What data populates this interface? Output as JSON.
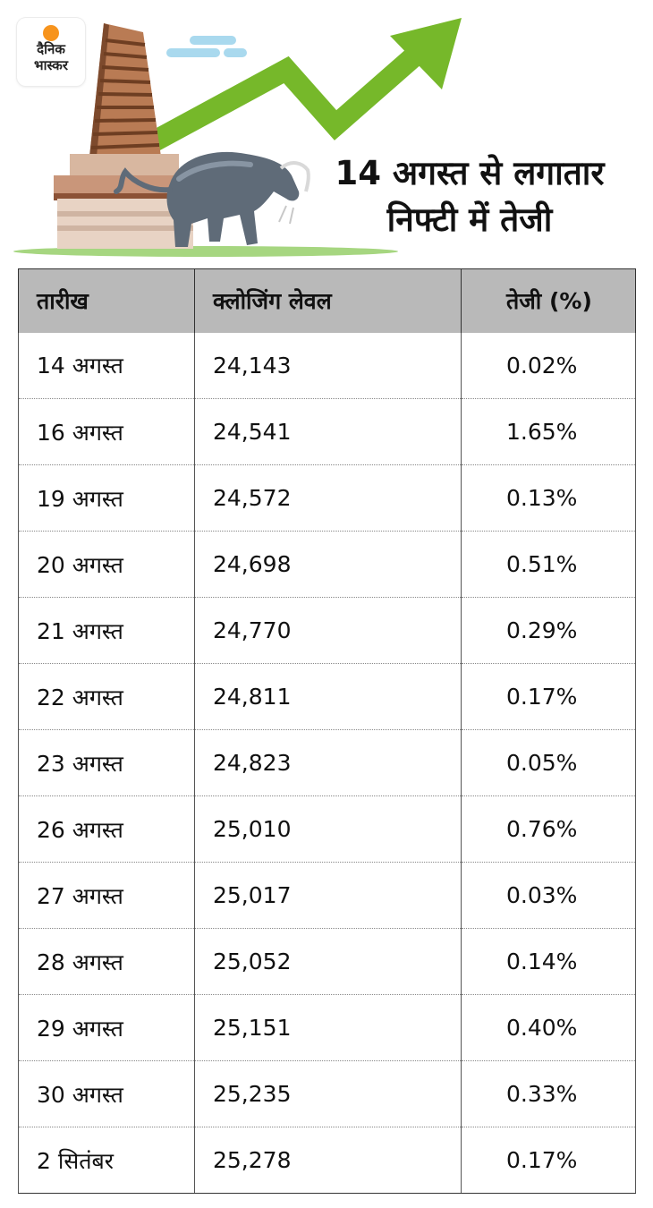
{
  "logo": {
    "line1": "दैनिक",
    "line2": "भास्कर"
  },
  "headline": {
    "line1": "14 अगस्त से लगातार",
    "line2": "निफ्टी में तेजी"
  },
  "table": {
    "headers": [
      "तारीख",
      "क्लोजिंग लेवल",
      "तेजी (%)"
    ],
    "rows": [
      [
        "14 अगस्त",
        "24,143",
        "0.02%"
      ],
      [
        "16 अगस्त",
        "24,541",
        "1.65%"
      ],
      [
        "19 अगस्त",
        "24,572",
        "0.13%"
      ],
      [
        "20 अगस्त",
        "24,698",
        "0.51%"
      ],
      [
        "21 अगस्त",
        "24,770",
        "0.29%"
      ],
      [
        "22 अगस्त",
        "24,811",
        "0.17%"
      ],
      [
        "23 अगस्त",
        "24,823",
        "0.05%"
      ],
      [
        "26 अगस्त",
        "25,010",
        "0.76%"
      ],
      [
        "27 अगस्त",
        "25,017",
        "0.03%"
      ],
      [
        "28 अगस्त",
        "25,052",
        "0.14%"
      ],
      [
        "29 अगस्त",
        "25,151",
        "0.40%"
      ],
      [
        "30 अगस्त",
        "25,235",
        "0.33%"
      ],
      [
        "2 सितंबर",
        "25,278",
        "0.17%"
      ]
    ]
  },
  "colors": {
    "arrow": "#76b82a",
    "header_bg": "#b9b9b9",
    "logo_sun": "#f7941d",
    "bull": "#5f6b78"
  },
  "icons": [
    "stock-exchange-building-icon",
    "rising-arrow-icon",
    "bull-icon",
    "cloud-icon"
  ]
}
